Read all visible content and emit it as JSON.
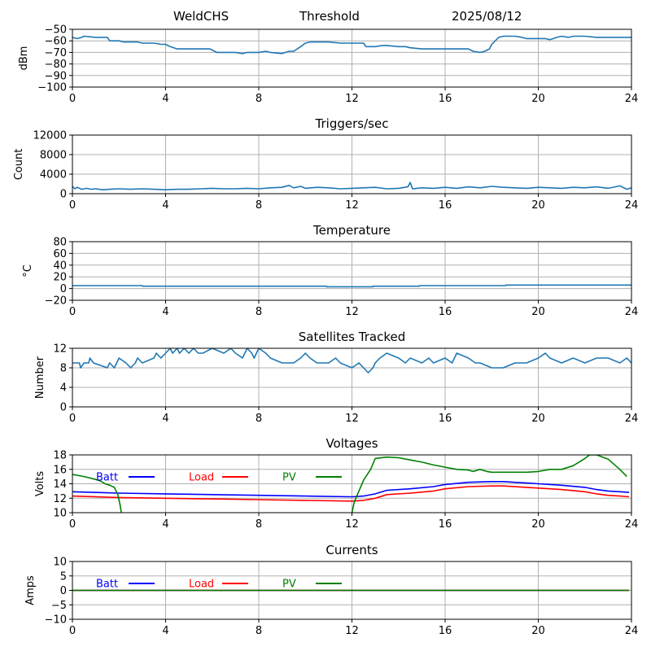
{
  "header": {
    "station": "WeldCHS",
    "mode": "Threshold",
    "date": "2025/08/12"
  },
  "colors": {
    "series": "#1f77b4",
    "batt": "#0000ff",
    "load": "#ff0000",
    "pv": "#008000",
    "grid": "#b0b0b0"
  },
  "chart_data": [
    {
      "type": "line",
      "title": "",
      "ylabel": "dBm",
      "xlim": [
        0,
        24
      ],
      "ylim": [
        -100,
        -50
      ],
      "xticks": [
        0,
        4,
        8,
        12,
        16,
        20,
        24
      ],
      "yticks": [
        -100,
        -90,
        -80,
        -70,
        -60,
        -50
      ],
      "grid": true,
      "series": [
        {
          "color": "#1f77b4",
          "x": [
            0,
            0.2,
            0.4,
            0.5,
            1.0,
            1.5,
            1.6,
            2.0,
            2.2,
            2.8,
            3.0,
            3.5,
            3.8,
            4.0,
            4.2,
            4.5,
            5.0,
            5.5,
            5.9,
            6.0,
            6.2,
            6.5,
            7.0,
            7.3,
            7.5,
            8.0,
            8.3,
            8.5,
            9.0,
            9.3,
            9.5,
            9.8,
            10.0,
            10.2,
            10.5,
            11.0,
            11.5,
            11.6,
            12.0,
            12.5,
            12.6,
            13.0,
            13.3,
            13.5,
            14.0,
            14.3,
            14.5,
            15.0,
            15.5,
            16.0,
            16.5,
            17.0,
            17.2,
            17.5,
            17.7,
            17.9,
            18.0,
            18.3,
            18.5,
            19.0,
            19.3,
            19.5,
            20.0,
            20.3,
            20.5,
            20.8,
            21.0,
            21.3,
            21.5,
            22.0,
            22.5,
            23.0,
            23.5,
            23.8,
            24.0
          ],
          "y": [
            -57,
            -58,
            -57,
            -56,
            -57,
            -57,
            -60,
            -60,
            -61,
            -61,
            -62,
            -62,
            -63,
            -63,
            -65,
            -67,
            -67,
            -67,
            -67,
            -68,
            -70,
            -70,
            -70,
            -71,
            -70,
            -70,
            -69,
            -70,
            -71,
            -69,
            -69,
            -65,
            -62,
            -61,
            -61,
            -61,
            -62,
            -62,
            -62,
            -62,
            -65,
            -65,
            -64,
            -64,
            -65,
            -65,
            -66,
            -67,
            -67,
            -67,
            -67,
            -67,
            -69,
            -70,
            -69,
            -67,
            -63,
            -57,
            -56,
            -56,
            -57,
            -58,
            -58,
            -58,
            -59,
            -57,
            -56,
            -57,
            -56,
            -56,
            -57,
            -57,
            -57,
            -57,
            -57
          ]
        }
      ]
    },
    {
      "type": "line",
      "title": "Triggers/sec",
      "ylabel": "Count",
      "xlim": [
        0,
        24
      ],
      "ylim": [
        0,
        12000
      ],
      "xticks": [
        0,
        4,
        8,
        12,
        16,
        20,
        24
      ],
      "yticks": [
        0,
        4000,
        8000,
        12000
      ],
      "grid": true,
      "series": [
        {
          "color": "#1f77b4",
          "x": [
            0,
            0.1,
            0.2,
            0.4,
            0.6,
            0.8,
            1.0,
            1.3,
            1.6,
            2.0,
            2.5,
            3.0,
            3.5,
            4.0,
            4.5,
            5.0,
            5.5,
            6.0,
            6.5,
            7.0,
            7.5,
            8.0,
            8.5,
            9.0,
            9.3,
            9.5,
            9.8,
            10.0,
            10.5,
            11.0,
            11.5,
            12.0,
            12.5,
            13.0,
            13.5,
            14.0,
            14.4,
            14.5,
            14.6,
            15.0,
            15.5,
            16.0,
            16.5,
            17.0,
            17.5,
            18.0,
            18.5,
            19.0,
            19.5,
            20.0,
            20.5,
            21.0,
            21.5,
            22.0,
            22.5,
            23.0,
            23.5,
            23.8,
            24.0
          ],
          "y": [
            1500,
            1000,
            1300,
            900,
            1100,
            900,
            1000,
            800,
            900,
            1000,
            900,
            1000,
            900,
            800,
            900,
            900,
            1000,
            1100,
            1000,
            1000,
            1100,
            1000,
            1200,
            1300,
            1700,
            1200,
            1500,
            1100,
            1300,
            1200,
            1000,
            1100,
            1200,
            1300,
            1000,
            1100,
            1400,
            2300,
            1000,
            1200,
            1100,
            1300,
            1100,
            1400,
            1200,
            1500,
            1300,
            1200,
            1100,
            1300,
            1200,
            1100,
            1300,
            1200,
            1400,
            1100,
            1600,
            900,
            1200
          ]
        }
      ]
    },
    {
      "type": "line",
      "title": "Temperature",
      "ylabel": "°C",
      "xlim": [
        0,
        24
      ],
      "ylim": [
        -20,
        80
      ],
      "xticks": [
        0,
        4,
        8,
        12,
        16,
        20,
        24
      ],
      "yticks": [
        -20,
        0,
        20,
        40,
        60,
        80
      ],
      "grid": true,
      "series": [
        {
          "color": "#1f77b4",
          "x": [
            0,
            3.0,
            3.01,
            10.9,
            10.91,
            12.9,
            12.91,
            14.9,
            14.91,
            18.6,
            18.61,
            24.0
          ],
          "y": [
            5,
            5,
            4,
            4,
            3,
            3,
            4,
            4,
            5,
            5,
            6,
            6
          ]
        }
      ]
    },
    {
      "type": "line",
      "title": "Satellites Tracked",
      "ylabel": "Number",
      "xlim": [
        0,
        24
      ],
      "ylim": [
        0,
        12
      ],
      "xticks": [
        0,
        4,
        8,
        12,
        16,
        20,
        24
      ],
      "yticks": [
        0,
        4,
        8,
        12
      ],
      "grid": true,
      "series": [
        {
          "color": "#1f77b4",
          "x": [
            0,
            0.3,
            0.35,
            0.5,
            0.7,
            0.75,
            0.9,
            1.5,
            1.6,
            1.8,
            1.9,
            2.0,
            2.3,
            2.5,
            2.7,
            2.8,
            3.0,
            3.5,
            3.6,
            3.8,
            4.0,
            4.2,
            4.3,
            4.5,
            4.6,
            4.8,
            5.0,
            5.2,
            5.4,
            5.6,
            6.0,
            6.5,
            6.8,
            7.0,
            7.3,
            7.5,
            7.7,
            7.8,
            8.0,
            8.3,
            8.5,
            9.0,
            9.5,
            9.8,
            10.0,
            10.2,
            10.5,
            11.0,
            11.3,
            11.5,
            12.0,
            12.3,
            12.5,
            12.7,
            12.9,
            13.0,
            13.2,
            13.5,
            14.0,
            14.3,
            14.5,
            15.0,
            15.3,
            15.5,
            16.0,
            16.3,
            16.5,
            17.0,
            17.3,
            17.5,
            18.0,
            18.5,
            19.0,
            19.5,
            20.0,
            20.3,
            20.5,
            21.0,
            21.5,
            22.0,
            22.5,
            23.0,
            23.5,
            23.8,
            24.0
          ],
          "y": [
            9,
            9,
            8,
            9,
            9,
            10,
            9,
            8,
            9,
            8,
            9,
            10,
            9,
            8,
            9,
            10,
            9,
            10,
            11,
            10,
            11,
            12,
            11,
            12,
            11,
            12,
            11,
            12,
            11,
            11,
            12,
            11,
            12,
            11,
            10,
            12,
            11,
            10,
            12,
            11,
            10,
            9,
            9,
            10,
            11,
            10,
            9,
            9,
            10,
            9,
            8,
            9,
            8,
            7,
            8,
            9,
            10,
            11,
            10,
            9,
            10,
            9,
            10,
            9,
            10,
            9,
            11,
            10,
            9,
            9,
            8,
            8,
            9,
            9,
            10,
            11,
            10,
            9,
            10,
            9,
            10,
            10,
            9,
            10,
            9
          ]
        }
      ]
    },
    {
      "type": "line",
      "title": "Voltages",
      "ylabel": "Volts",
      "xlim": [
        0,
        24
      ],
      "ylim": [
        10,
        18
      ],
      "xticks": [
        0,
        4,
        8,
        12,
        16,
        20,
        24
      ],
      "yticks": [
        10,
        12,
        14,
        16,
        18
      ],
      "grid": true,
      "legend": [
        {
          "label": "Batt",
          "color": "#0000ff"
        },
        {
          "label": "Load",
          "color": "#ff0000"
        },
        {
          "label": "PV",
          "color": "#008000"
        }
      ],
      "series": [
        {
          "name": "Batt",
          "color": "#0000ff",
          "x": [
            0,
            2,
            4,
            6,
            8,
            10,
            12,
            12.5,
            13.0,
            13.5,
            14.5,
            15.5,
            16.0,
            17.0,
            18.0,
            18.5,
            19.5,
            20.0,
            21.0,
            22.0,
            22.5,
            23.0,
            23.5,
            23.9
          ],
          "y": [
            12.9,
            12.7,
            12.6,
            12.5,
            12.4,
            12.3,
            12.2,
            12.3,
            12.6,
            13.1,
            13.3,
            13.6,
            13.9,
            14.2,
            14.3,
            14.3,
            14.1,
            14.0,
            13.8,
            13.5,
            13.2,
            13.0,
            12.9,
            12.8
          ]
        },
        {
          "name": "Load",
          "color": "#ff0000",
          "x": [
            0,
            2,
            4,
            6,
            8,
            10,
            12,
            12.5,
            13.0,
            13.5,
            14.5,
            15.5,
            16.0,
            17.0,
            18.0,
            18.5,
            19.5,
            20.0,
            21.0,
            22.0,
            22.5,
            23.0,
            23.5,
            23.9
          ],
          "y": [
            12.3,
            12.1,
            12.0,
            11.9,
            11.8,
            11.7,
            11.6,
            11.7,
            12.0,
            12.5,
            12.7,
            13.0,
            13.3,
            13.6,
            13.7,
            13.7,
            13.5,
            13.4,
            13.2,
            12.9,
            12.6,
            12.4,
            12.3,
            12.2
          ]
        },
        {
          "name": "PV",
          "color": "#008000",
          "x": [
            0,
            0.5,
            1.0,
            1.2,
            1.4,
            1.6,
            1.8,
            1.95,
            2.05,
            2.1,
            2.15,
            11.9,
            12.0,
            12.1,
            12.3,
            12.5,
            12.8,
            13.0,
            13.5,
            14.0,
            15.0,
            15.5,
            16.0,
            16.5,
            17.0,
            17.2,
            17.5,
            17.8,
            18.0,
            18.5,
            19.0,
            19.5,
            20.0,
            20.5,
            21.0,
            21.5,
            22.0,
            22.2,
            22.5,
            23.0,
            23.5,
            23.8
          ],
          "y": [
            15.3,
            15.0,
            14.6,
            14.4,
            14.0,
            13.8,
            13.5,
            12.5,
            11.0,
            10.0,
            null,
            null,
            10.0,
            11.5,
            13.0,
            14.5,
            16.0,
            17.5,
            17.7,
            17.6,
            17.0,
            16.6,
            16.3,
            16.0,
            15.9,
            15.7,
            16.0,
            15.7,
            15.6,
            15.6,
            15.6,
            15.6,
            15.7,
            16.0,
            16.0,
            16.5,
            17.5,
            18.0,
            18.0,
            17.4,
            16.0,
            15.0
          ]
        }
      ]
    },
    {
      "type": "line",
      "title": "Currents",
      "ylabel": "Amps",
      "xlim": [
        0,
        24
      ],
      "ylim": [
        -10,
        10
      ],
      "xticks": [
        0,
        4,
        8,
        12,
        16,
        20,
        24
      ],
      "yticks": [
        -10,
        -5,
        0,
        5,
        10
      ],
      "grid": true,
      "legend": [
        {
          "label": "Batt",
          "color": "#0000ff"
        },
        {
          "label": "Load",
          "color": "#ff0000"
        },
        {
          "label": "PV",
          "color": "#008000"
        }
      ],
      "series": [
        {
          "name": "Batt",
          "color": "#0000ff",
          "x": [
            0,
            23.9
          ],
          "y": [
            0,
            0
          ]
        },
        {
          "name": "Load",
          "color": "#ff0000",
          "x": [
            0,
            23.9
          ],
          "y": [
            0,
            0
          ]
        },
        {
          "name": "PV",
          "color": "#008000",
          "x": [
            0,
            23.9
          ],
          "y": [
            0,
            0
          ]
        }
      ]
    }
  ]
}
